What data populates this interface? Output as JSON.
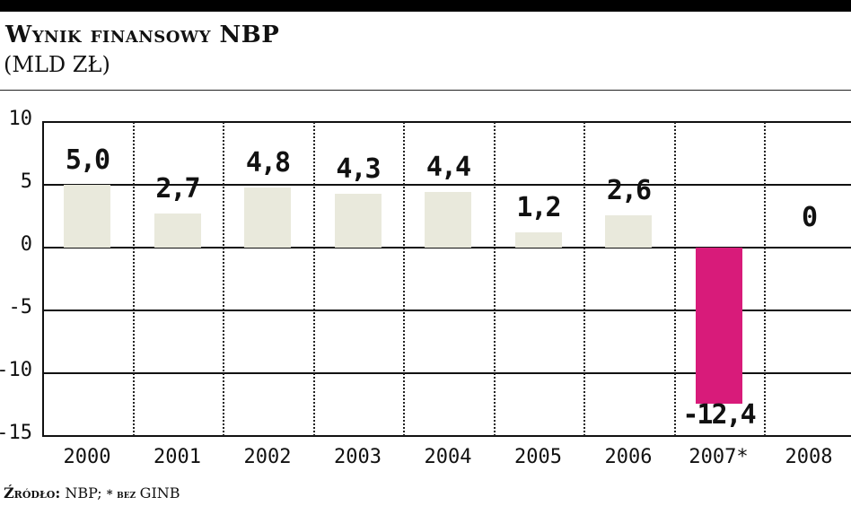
{
  "header": {
    "title": "Wynik finansowy NBP",
    "subtitle": "(MLD ZŁ)"
  },
  "footer": {
    "source_label": "Źródło:",
    "source_value": " NBP; ",
    "note_mark": "*",
    "note_text": " bez ",
    "note_value": "GINB"
  },
  "colors": {
    "positive_bar": "#e9e9dc",
    "negative_bar": "#d81b7a",
    "grid": "#111111"
  },
  "chart_data": {
    "type": "bar",
    "title": "Wynik finansowy NBP",
    "subtitle": "(mld zł)",
    "xlabel": "",
    "ylabel": "mld zł",
    "ylim": [
      -15,
      10
    ],
    "yticks": [
      10,
      5,
      0,
      -5,
      -10,
      -15
    ],
    "ytick_labels": [
      "10",
      "5",
      "0",
      "-5",
      "-10",
      "-15"
    ],
    "categories": [
      "2000",
      "2001",
      "2002",
      "2003",
      "2004",
      "2005",
      "2006",
      "2007*",
      "2008"
    ],
    "values": [
      5.0,
      2.7,
      4.8,
      4.3,
      4.4,
      1.2,
      2.6,
      -12.4,
      0
    ],
    "value_labels": [
      "5,0",
      "2,7",
      "4,8",
      "4,3",
      "4,4",
      "1,2",
      "2,6",
      "-12,4",
      "0"
    ],
    "grid": true,
    "legend": null,
    "annotations": [
      "Źródło: NBP; * bez GINB"
    ]
  }
}
